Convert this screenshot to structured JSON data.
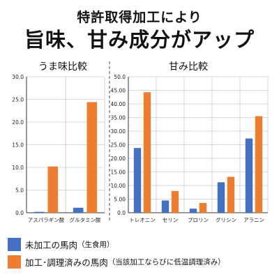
{
  "header": {
    "line1": "特許取得加工により",
    "line2": "旨味、甘み成分がアップ"
  },
  "colors": {
    "blue": "#4470c4",
    "orange": "#ed7d31",
    "grid": "#cccccc",
    "axis": "#333333"
  },
  "legend": {
    "series1_main": "未加工の馬肉",
    "series1_note": "（生食用）",
    "series2_main": "加工･調理済みの馬肉",
    "series2_note": "（当該加工ならびに低温調理済み）"
  },
  "chart_data": [
    {
      "type": "bar",
      "title": "うま味比較",
      "categories": [
        "アスパラギン酸",
        "グルタミン酸"
      ],
      "series": [
        {
          "values": [
            0.2,
            1.1
          ]
        },
        {
          "values": [
            10.2,
            24.4
          ]
        }
      ],
      "yticks": [
        "0.0",
        "5.0",
        "10.0",
        "15.0",
        "20.0",
        "25.0",
        "30.0"
      ],
      "ylim": [
        0,
        30
      ],
      "grid": true
    },
    {
      "type": "bar",
      "title": "甘み比較",
      "categories": [
        "トレオニン",
        "セリン",
        "プロリン",
        "グリシン",
        "アラニン"
      ],
      "series": [
        {
          "values": [
            23.8,
            4.5,
            1.5,
            11.2,
            27.3
          ]
        },
        {
          "values": [
            44.3,
            8.0,
            3.6,
            13.2,
            35.5
          ]
        }
      ],
      "yticks": [
        "0.0",
        "5.00",
        "10.00",
        "15.00",
        "20.00",
        "25.00",
        "30.00",
        "35.00",
        "40.00",
        "45.00",
        "50.0"
      ],
      "ylim": [
        0,
        50
      ],
      "grid": true
    }
  ]
}
